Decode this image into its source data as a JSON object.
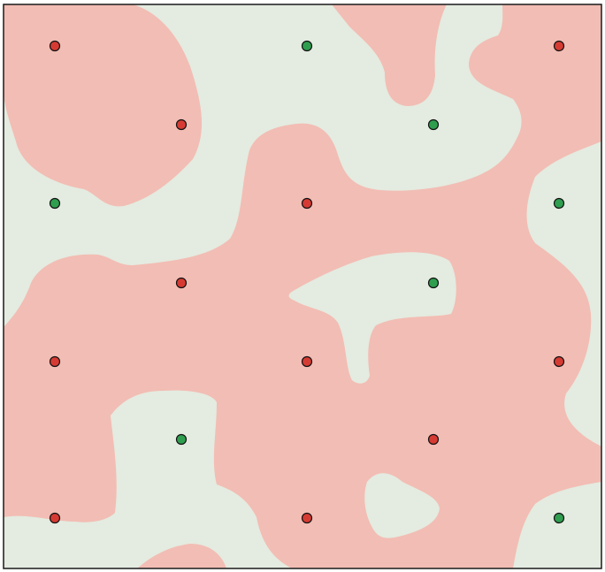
{
  "colors": {
    "background": "#e4ebe0",
    "region": "#f2bdb4",
    "border": "#1a1a1a",
    "red_point": "#d63b33",
    "green_point": "#2f9e4f",
    "point_stroke": "#111111"
  },
  "points": [
    {
      "row": 0,
      "col": 0,
      "class": "red"
    },
    {
      "row": 0,
      "col": 2,
      "class": "green"
    },
    {
      "row": 0,
      "col": 4,
      "class": "red"
    },
    {
      "row": 1,
      "col": 1,
      "class": "red"
    },
    {
      "row": 1,
      "col": 3,
      "class": "green"
    },
    {
      "row": 2,
      "col": 0,
      "class": "green"
    },
    {
      "row": 2,
      "col": 2,
      "class": "red"
    },
    {
      "row": 2,
      "col": 4,
      "class": "green"
    },
    {
      "row": 3,
      "col": 1,
      "class": "red"
    },
    {
      "row": 3,
      "col": 3,
      "class": "green"
    },
    {
      "row": 4,
      "col": 0,
      "class": "red"
    },
    {
      "row": 4,
      "col": 2,
      "class": "red"
    },
    {
      "row": 4,
      "col": 4,
      "class": "red"
    },
    {
      "row": 5,
      "col": 1,
      "class": "green"
    },
    {
      "row": 5,
      "col": 3,
      "class": "red"
    },
    {
      "row": 6,
      "col": 0,
      "class": "red"
    },
    {
      "row": 6,
      "col": 2,
      "class": "red"
    },
    {
      "row": 6,
      "col": 4,
      "class": "green"
    }
  ]
}
